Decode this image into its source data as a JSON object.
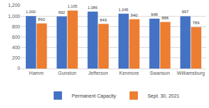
{
  "chart_data": {
    "type": "bar",
    "categories": [
      "Hamm",
      "Gunston",
      "Jefferson",
      "Kenmore",
      "Swanson",
      "Williamsburg"
    ],
    "series": [
      {
        "name": "Permanent Capacity",
        "color": "#4472c4",
        "values": [
          1000,
          992,
          1086,
          1045,
          948,
          997
        ],
        "value_labels": [
          "1,000",
          "992",
          "1,086",
          "1,045",
          "948",
          "997"
        ]
      },
      {
        "name": "Sept. 30, 2021",
        "color": "#ed7d31",
        "values": [
          860,
          1105,
          849,
          940,
          888,
          789
        ],
        "value_labels": [
          "860",
          "1,105",
          "849",
          "940",
          "888",
          "789"
        ]
      }
    ],
    "ylim": [
      0,
      1200
    ],
    "yticks": [
      0,
      200,
      400,
      600,
      800,
      {
        "value": 1000,
        "label": "1,000"
      },
      {
        "value": 1200,
        "label": "1,200"
      }
    ],
    "grid": true,
    "data_labels": true,
    "legend": "bottom"
  }
}
